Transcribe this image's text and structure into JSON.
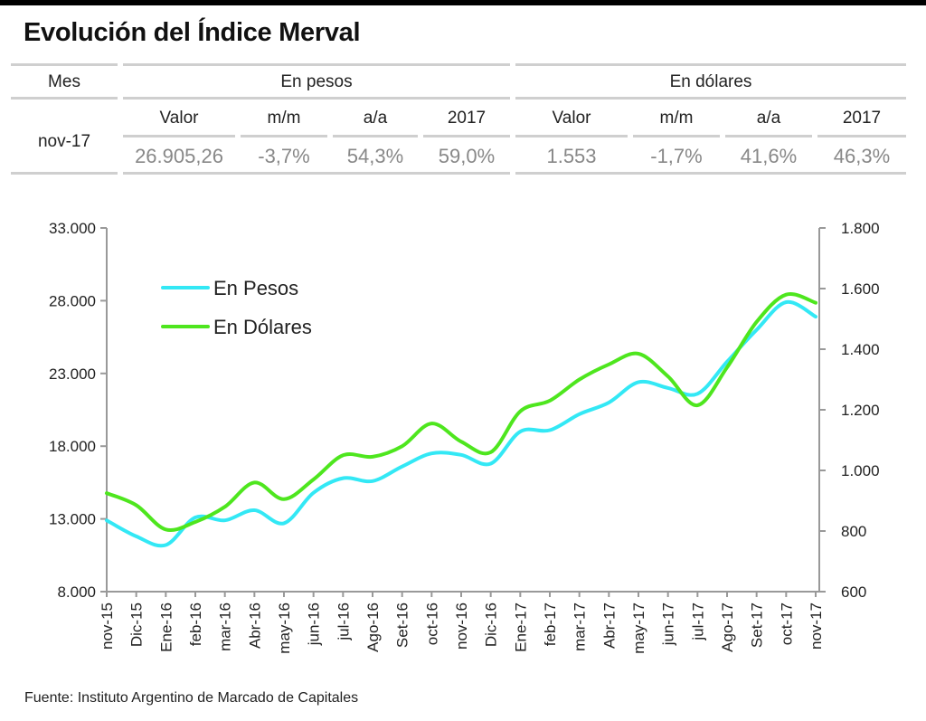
{
  "title": "Evolución del Índice Merval",
  "table": {
    "mes_header": "Mes",
    "group_pesos": "En pesos",
    "group_dolares": "En dólares",
    "col_headers": [
      "Valor",
      "m/m",
      "a/a",
      "2017",
      "Valor",
      "m/m",
      "a/a",
      "2017"
    ],
    "row_label": "nov-17",
    "row_values": [
      "26.905,26",
      "-3,7%",
      "54,3%",
      "59,0%",
      "1.553",
      "-1,7%",
      "41,6%",
      "46,3%"
    ]
  },
  "source": "Fuente: Instituto Argentino de Marcado de Capitales",
  "colors": {
    "pesos": "#33e8f5",
    "dolares": "#4ee61e",
    "axis": "#999999",
    "rule": "#cfcfcf"
  },
  "chart_data": {
    "type": "line",
    "categories": [
      "nov-15",
      "Dic-15",
      "Ene-16",
      "feb-16",
      "mar-16",
      "Abr-16",
      "may-16",
      "jun-16",
      "jul-16",
      "Ago-16",
      "Set-16",
      "oct-16",
      "nov-16",
      "Dic-16",
      "Ene-17",
      "feb-17",
      "mar-17",
      "Abr-17",
      "may-17",
      "jun-17",
      "jul-17",
      "Ago-17",
      "Set-17",
      "oct-17",
      "nov-17"
    ],
    "left_axis": {
      "ylim": [
        8000,
        33000
      ],
      "ticks": [
        "8.000",
        "13.000",
        "18.000",
        "23.000",
        "28.000",
        "33.000"
      ]
    },
    "right_axis": {
      "ylim": [
        600,
        1800
      ],
      "ticks": [
        "600",
        "800",
        "1.000",
        "1.200",
        "1.400",
        "1.600",
        "1.800"
      ]
    },
    "series": [
      {
        "name": "En Pesos",
        "axis": "left",
        "values": [
          12900,
          11800,
          11200,
          13100,
          12900,
          13600,
          12700,
          14800,
          15800,
          15600,
          16600,
          17500,
          17400,
          16800,
          19000,
          19100,
          20200,
          21000,
          22400,
          22000,
          21600,
          23800,
          26000,
          27900,
          26900
        ]
      },
      {
        "name": "En Dólares",
        "axis": "right",
        "values": [
          925,
          885,
          805,
          830,
          880,
          960,
          905,
          970,
          1050,
          1045,
          1080,
          1155,
          1095,
          1060,
          1195,
          1230,
          1300,
          1350,
          1385,
          1310,
          1215,
          1340,
          1490,
          1580,
          1553
        ]
      }
    ],
    "legend_position": "top-left",
    "grid": false
  }
}
